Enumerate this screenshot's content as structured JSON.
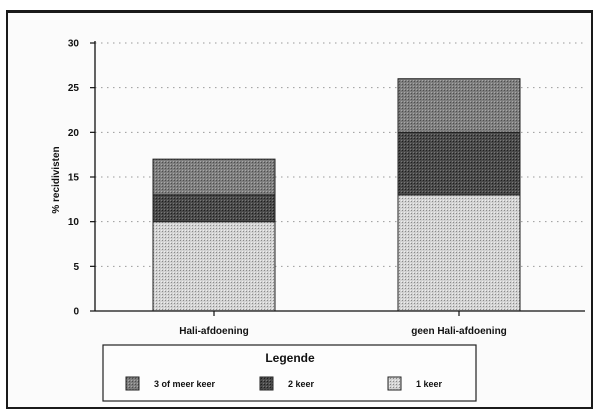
{
  "chart_data": {
    "type": "bar",
    "stacked": true,
    "categories": [
      "Hali-afdoening",
      "geen Hali-afdoening"
    ],
    "series": [
      {
        "name": "1 keer",
        "values": [
          10,
          13
        ]
      },
      {
        "name": "2 keer",
        "values": [
          3,
          7
        ]
      },
      {
        "name": "3 of meer keer",
        "values": [
          4,
          6
        ]
      }
    ],
    "ylabel": "% recidivisten",
    "xlabel": "",
    "ylim": [
      0,
      30
    ],
    "yticks": [
      "0",
      "5",
      "10",
      "15",
      "20",
      "25",
      "30"
    ],
    "grid": true,
    "legend": {
      "title": "Legende",
      "placement": "bottom",
      "entries": [
        "3 of meer keer",
        "2 keer",
        "1 keer"
      ]
    }
  }
}
